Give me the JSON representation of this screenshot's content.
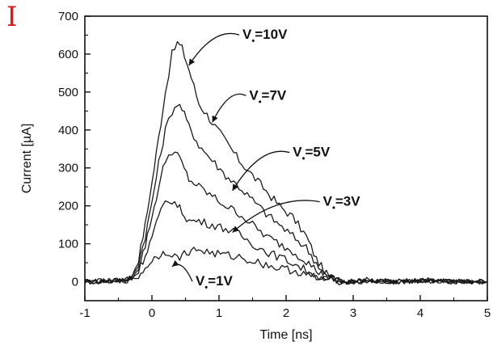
{
  "panel_label": "I",
  "chart_data": {
    "type": "line",
    "xlabel": "Time [ns]",
    "ylabel": "Current [µA]",
    "xlim": [
      -1,
      5
    ],
    "ylim": [
      -50,
      700
    ],
    "x_ticks": [
      -1,
      0,
      1,
      2,
      3,
      4,
      5
    ],
    "y_ticks": [
      0,
      100,
      200,
      300,
      400,
      500,
      600,
      700
    ],
    "grid": false,
    "legend": "none",
    "line_color": "#1a1a1a",
    "series": [
      {
        "label": "V=10V",
        "x": [
          -1.0,
          -0.6,
          -0.4,
          -0.3,
          -0.2,
          -0.1,
          0.0,
          0.1,
          0.2,
          0.3,
          0.38,
          0.45,
          0.55,
          0.7,
          0.9,
          1.1,
          1.3,
          1.5,
          1.7,
          1.9,
          2.1,
          2.3,
          2.45,
          2.6,
          2.75,
          2.9,
          3.2,
          3.6,
          4.0,
          4.5,
          5.0
        ],
        "y": [
          0,
          2,
          5,
          15,
          60,
          150,
          260,
          380,
          500,
          600,
          630,
          615,
          560,
          470,
          420,
          370,
          320,
          280,
          240,
          200,
          170,
          120,
          60,
          20,
          5,
          0,
          5,
          0,
          5,
          0,
          0
        ]
      },
      {
        "label": "V=7V",
        "x": [
          -1.0,
          -0.6,
          -0.4,
          -0.3,
          -0.2,
          -0.1,
          0.0,
          0.1,
          0.2,
          0.3,
          0.38,
          0.45,
          0.55,
          0.7,
          0.9,
          1.1,
          1.3,
          1.5,
          1.7,
          1.9,
          2.1,
          2.3,
          2.45,
          2.6,
          2.75,
          2.9,
          3.2,
          3.6,
          4.0,
          4.5,
          5.0
        ],
        "y": [
          0,
          2,
          5,
          12,
          50,
          120,
          210,
          310,
          400,
          450,
          470,
          455,
          410,
          360,
          320,
          280,
          250,
          215,
          180,
          150,
          120,
          90,
          50,
          15,
          5,
          0,
          3,
          0,
          4,
          0,
          0
        ]
      },
      {
        "label": "V=5V",
        "x": [
          -1.0,
          -0.6,
          -0.4,
          -0.3,
          -0.2,
          -0.1,
          0.0,
          0.1,
          0.2,
          0.3,
          0.38,
          0.45,
          0.55,
          0.7,
          0.9,
          1.1,
          1.3,
          1.5,
          1.7,
          1.9,
          2.1,
          2.3,
          2.45,
          2.6,
          2.75,
          2.9,
          3.2,
          3.6,
          4.0,
          4.5,
          5.0
        ],
        "y": [
          0,
          2,
          4,
          10,
          40,
          95,
          170,
          250,
          320,
          345,
          335,
          310,
          270,
          250,
          225,
          200,
          180,
          150,
          120,
          100,
          80,
          55,
          30,
          10,
          3,
          0,
          3,
          0,
          3,
          0,
          0
        ]
      },
      {
        "label": "V=3V",
        "x": [
          -1.0,
          -0.6,
          -0.4,
          -0.3,
          -0.2,
          -0.1,
          0.0,
          0.1,
          0.2,
          0.3,
          0.38,
          0.45,
          0.55,
          0.7,
          0.9,
          1.1,
          1.3,
          1.5,
          1.7,
          1.9,
          2.1,
          2.3,
          2.45,
          2.6,
          2.75,
          2.9,
          3.2,
          3.6,
          4.0,
          4.5,
          5.0
        ],
        "y": [
          0,
          2,
          4,
          8,
          30,
          70,
          120,
          170,
          210,
          215,
          200,
          185,
          160,
          160,
          150,
          140,
          125,
          100,
          80,
          65,
          50,
          30,
          15,
          5,
          2,
          0,
          2,
          0,
          2,
          0,
          0
        ]
      },
      {
        "label": "V=1V",
        "x": [
          -1.0,
          -0.6,
          -0.4,
          -0.3,
          -0.2,
          -0.1,
          0.0,
          0.1,
          0.2,
          0.3,
          0.38,
          0.45,
          0.55,
          0.7,
          0.9,
          1.1,
          1.3,
          1.5,
          1.7,
          1.9,
          2.1,
          2.3,
          2.45,
          2.6,
          2.75,
          2.9,
          3.2,
          3.6,
          4.0,
          4.5,
          5.0
        ],
        "y": [
          0,
          2,
          3,
          5,
          15,
          35,
          55,
          70,
          80,
          75,
          60,
          70,
          80,
          85,
          75,
          70,
          65,
          55,
          45,
          35,
          30,
          20,
          10,
          5,
          2,
          0,
          2,
          0,
          2,
          0,
          0
        ]
      }
    ],
    "annotations": [
      {
        "main": "V",
        "sub": "•",
        "rest": "=10V",
        "text_x": 1.35,
        "text_y": 640,
        "arrow_x": 0.55,
        "arrow_y": 570
      },
      {
        "main": "V",
        "sub": "•",
        "rest": "=7V",
        "text_x": 1.45,
        "text_y": 480,
        "arrow_x": 0.9,
        "arrow_y": 420
      },
      {
        "main": "V",
        "sub": "•",
        "rest": "=5V",
        "text_x": 2.1,
        "text_y": 330,
        "arrow_x": 1.2,
        "arrow_y": 240
      },
      {
        "main": "V",
        "sub": "•",
        "rest": "=3V",
        "text_x": 2.55,
        "text_y": 200,
        "arrow_x": 1.2,
        "arrow_y": 130
      },
      {
        "main": "V",
        "sub": "•",
        "rest": "=1V",
        "text_x": 0.65,
        "text_y": -10,
        "arrow_x": 0.3,
        "arrow_y": 40
      }
    ]
  }
}
